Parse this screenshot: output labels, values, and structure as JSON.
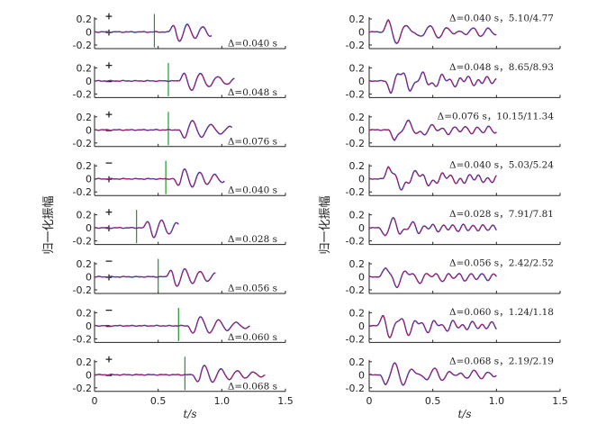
{
  "chart_data": [
    {
      "type": "line",
      "xlabel": "t/s",
      "ylabel": "归一化振幅",
      "xlim": [
        0,
        1.5
      ],
      "xticks": [
        "0",
        "0.5",
        "1.0",
        "1.5"
      ],
      "yticks": [
        "0.2",
        "0",
        "-0.2"
      ],
      "panels": [
        {
          "annotation": "Δ=0.040 s",
          "polarity": [
            "+",
            "+"
          ],
          "pick": 0.47,
          "onset": 0.58,
          "end": 0.92
        },
        {
          "annotation": "Δ=0.048 s",
          "polarity": [
            "+",
            "−"
          ],
          "pick": 0.58,
          "onset": 0.66,
          "end": 1.1
        },
        {
          "annotation": "Δ=0.076 s",
          "polarity": [
            "+",
            "−"
          ],
          "pick": 0.58,
          "onset": 0.66,
          "end": 1.08
        },
        {
          "annotation": "Δ=0.040 s",
          "polarity": [
            "−",
            "+"
          ],
          "pick": 0.56,
          "onset": 0.62,
          "end": 1.02
        },
        {
          "annotation": "Δ=0.028 s",
          "polarity": [
            "+",
            "+"
          ],
          "pick": 0.33,
          "onset": 0.38,
          "end": 0.66
        },
        {
          "annotation": "Δ=0.056 s",
          "polarity": [
            "−",
            "+"
          ],
          "pick": 0.5,
          "onset": 0.56,
          "end": 0.95
        },
        {
          "annotation": "Δ=0.060 s",
          "polarity": [
            "−",
            "−"
          ],
          "pick": 0.66,
          "onset": 0.73,
          "end": 1.22
        },
        {
          "annotation": "Δ=0.068 s",
          "polarity": [
            "+",
            "−"
          ],
          "pick": 0.71,
          "onset": 0.77,
          "end": 1.34
        }
      ]
    },
    {
      "type": "line",
      "xlabel": "t/s",
      "ylabel": "归一化振幅",
      "xlim": [
        0,
        1.5
      ],
      "xticks": [
        "0",
        "0.5",
        "1.0",
        "1.5"
      ],
      "yticks": [
        "0.2",
        "0",
        "-0.2"
      ],
      "panels": [
        {
          "annotation": "Δ=0.040 s，5.10/4.77",
          "onset": 0.1,
          "end": 1.0
        },
        {
          "annotation": "Δ=0.048 s，8.65/8.93",
          "onset": 0.12,
          "end": 1.0
        },
        {
          "annotation": "Δ=0.076 s，10.15/11.34",
          "onset": 0.15,
          "end": 1.0
        },
        {
          "annotation": "Δ=0.040 s，5.03/5.24",
          "onset": 0.1,
          "end": 1.0
        },
        {
          "annotation": "Δ=0.028 s，7.91/7.81",
          "onset": 0.08,
          "end": 1.0
        },
        {
          "annotation": "Δ=0.056 s，2.42/2.52",
          "onset": 0.08,
          "end": 1.0
        },
        {
          "annotation": "Δ=0.060 s，1.24/1.18",
          "onset": 0.06,
          "end": 1.0
        },
        {
          "annotation": "Δ=0.068 s，2.19/2.19",
          "onset": 0.08,
          "end": 1.0
        }
      ]
    }
  ]
}
